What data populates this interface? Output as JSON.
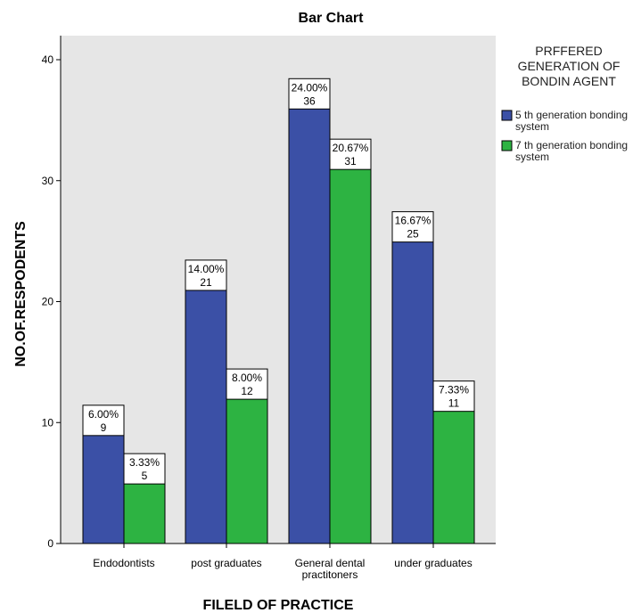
{
  "chart_data": {
    "type": "bar",
    "title": "Bar Chart",
    "xlabel": "FILELD OF PRACTICE",
    "ylabel": "NO.OF.RESPODENTS",
    "categories": [
      [
        "Endodontists"
      ],
      [
        "post graduates"
      ],
      [
        "General dental",
        "practitoners"
      ],
      [
        "under graduates"
      ]
    ],
    "series": [
      {
        "name": [
          "5 th generation bonding",
          "system"
        ],
        "color": "#3b50a6",
        "values": [
          9,
          21,
          36,
          25
        ],
        "percents": [
          "6.00%",
          "14.00%",
          "24.00%",
          "16.67%"
        ]
      },
      {
        "name": [
          "7 th generation bonding",
          "system"
        ],
        "color": "#2db342",
        "values": [
          5,
          12,
          31,
          11
        ],
        "percents": [
          "3.33%",
          "8.00%",
          "20.67%",
          "7.33%"
        ]
      }
    ],
    "legend_title": [
      "PRFFERED",
      "GENERATION OF",
      "BONDIN AGENT"
    ],
    "ylim": [
      0,
      40
    ],
    "yticks": [
      0,
      10,
      20,
      30,
      40
    ],
    "plot_background": "#e6e6e6",
    "legend_position": "right",
    "grid": false
  }
}
